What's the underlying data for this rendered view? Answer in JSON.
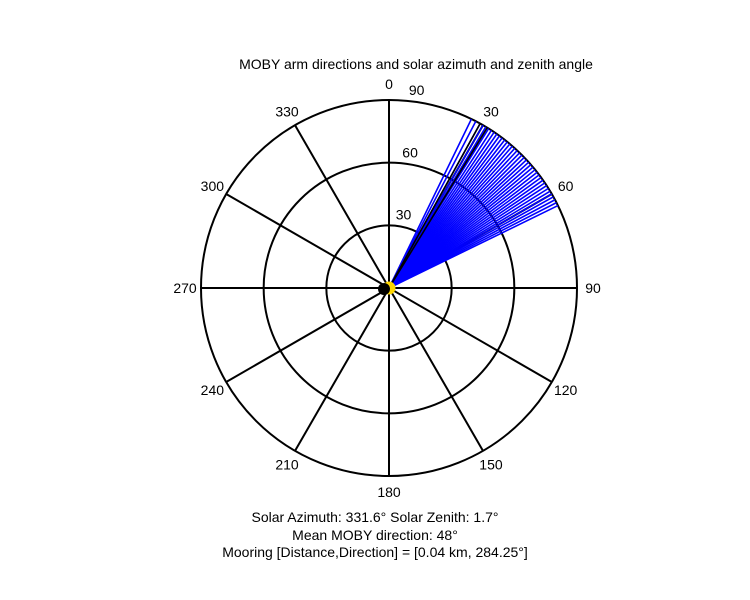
{
  "chart_data": {
    "type": "polar",
    "title": "MOBY arm directions and solar azimuth and zenith angle",
    "angle_ticks": [
      0,
      30,
      60,
      90,
      120,
      150,
      180,
      210,
      240,
      270,
      300,
      330
    ],
    "angle_tick_labels": [
      "0",
      "30",
      "60",
      "90",
      "120",
      "150",
      "180",
      "210",
      "240",
      "270",
      "300",
      "330"
    ],
    "angle_direction": "clockwise",
    "zero_location": "top",
    "radius_max": 90,
    "radius_ticks": [
      30,
      60,
      90
    ],
    "radius_tick_labels": [
      "30",
      "60",
      "90"
    ],
    "series": [
      {
        "role": "MOBY arm directions",
        "color": "#0000ff",
        "radius": 90,
        "azimuths": [
          26,
          27.5,
          29,
          30,
          31,
          32,
          33,
          34,
          35,
          36,
          37,
          38,
          39,
          40,
          41,
          42,
          43,
          44,
          45,
          46,
          47,
          48,
          49,
          50,
          51,
          52,
          53,
          54,
          55,
          56,
          57,
          58,
          59,
          60,
          61,
          62,
          63,
          64
        ]
      },
      {
        "role": "black reference lines",
        "color": "#000000",
        "radius": 90,
        "azimuths": [
          29,
          31.5
        ]
      }
    ],
    "sun_marker": {
      "azimuth": 331.6,
      "zenith": 1.7,
      "color": "#ffd700"
    },
    "center_marker": {
      "color": "#000000"
    }
  },
  "footer": {
    "solar_line": "Solar Azimuth: 331.6°   Solar Zenith: 1.7°",
    "mean_line": "Mean MOBY direction: 48°",
    "mooring_line": "Mooring [Distance,Direction] = [0.04 km, 284.25°]"
  }
}
